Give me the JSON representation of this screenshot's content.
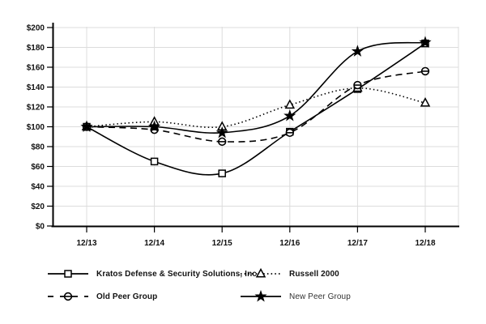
{
  "chart_data": {
    "type": "line",
    "title": "",
    "xlabel": "",
    "ylabel": "",
    "x_labels": [
      "12/13",
      "12/14",
      "12/15",
      "12/16",
      "12/17",
      "12/18"
    ],
    "y_tick_labels": [
      "$0",
      "$20",
      "$40",
      "$60",
      "$80",
      "$100",
      "$120",
      "$140",
      "$160",
      "$180",
      "$200"
    ],
    "ylim": [
      0,
      200
    ],
    "y_step": 20,
    "grid": true,
    "legend_position": "bottom",
    "series": [
      {
        "name": "Kratos Defense & Security Solutions, Inc",
        "marker": "square",
        "line_style": "solid",
        "values": [
          100,
          65,
          53,
          95,
          138,
          184
        ]
      },
      {
        "name": "Russell 2000",
        "marker": "triangle",
        "line_style": "dotted",
        "values": [
          100,
          105,
          100,
          122,
          139,
          124
        ]
      },
      {
        "name": "Old Peer Group",
        "marker": "circle-bar",
        "line_style": "dashed",
        "values": [
          100,
          97,
          85,
          94,
          142,
          156
        ]
      },
      {
        "name": "New Peer Group",
        "marker": "star",
        "line_style": "solid",
        "values": [
          100,
          100,
          94,
          111,
          176,
          185
        ]
      }
    ],
    "colors": {
      "line": "#000000",
      "grid": "#dcdcdc",
      "text": "#111111",
      "background": "#ffffff"
    }
  }
}
